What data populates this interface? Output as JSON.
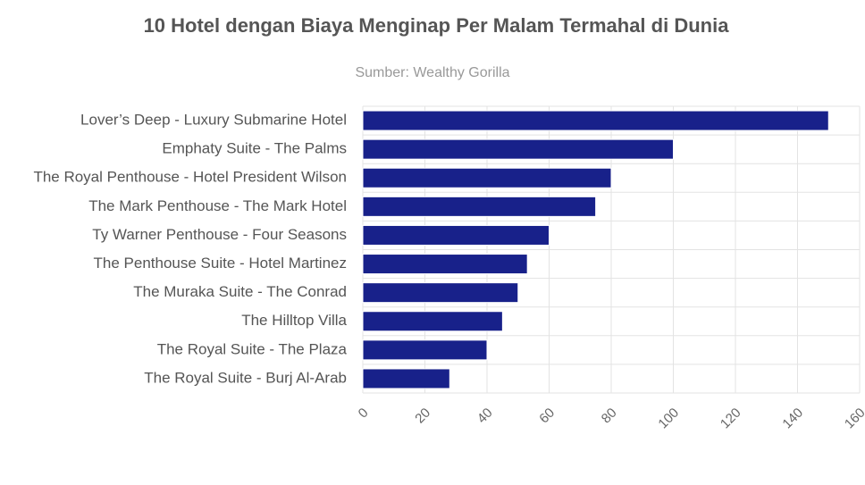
{
  "chart_data": {
    "type": "bar",
    "orientation": "horizontal",
    "title": "10 Hotel dengan Biaya Menginap Per Malam Termahal di Dunia",
    "subtitle": "Sumber: Wealthy Gorilla",
    "categories": [
      "Lover’s Deep - Luxury Submarine Hotel",
      "Emphaty Suite - The Palms",
      "The Royal Penthouse - Hotel President Wilson",
      "The Mark Penthouse - The Mark Hotel",
      "Ty Warner Penthouse - Four Seasons",
      "The Penthouse Suite - Hotel Martinez",
      "The Muraka Suite - The Conrad",
      "The Hilltop Villa",
      "The Royal Suite - The Plaza",
      "The Royal Suite - Burj Al-Arab"
    ],
    "values": [
      150,
      100,
      80,
      75,
      60,
      53,
      50,
      45,
      40,
      28
    ],
    "color": "#18218a",
    "xlim": [
      0,
      160
    ],
    "xticks": [
      0,
      20,
      40,
      60,
      80,
      100,
      120,
      140,
      160
    ],
    "grid": true
  }
}
